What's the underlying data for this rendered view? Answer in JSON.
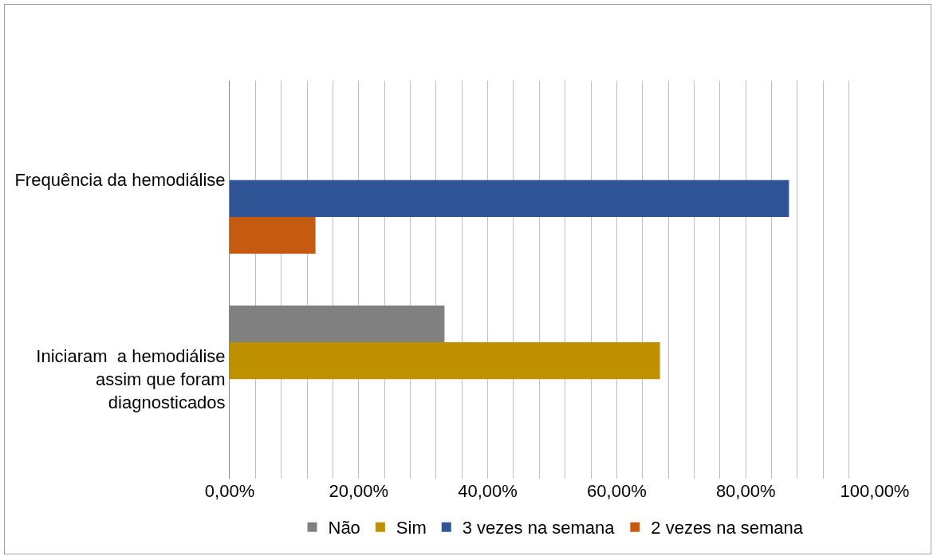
{
  "chart_data": {
    "type": "bar",
    "orientation": "horizontal",
    "categories": [
      "Frequência da hemodiálise",
      "Iniciaram  a hemodiálise assim que foram diagnosticados"
    ],
    "series": [
      {
        "name": "Não",
        "color": "#808080",
        "values": [
          null,
          33.3
        ]
      },
      {
        "name": "Sim",
        "color": "#bf9000",
        "values": [
          null,
          66.7
        ]
      },
      {
        "name": "3 vezes na semana",
        "color": "#2f5597",
        "values": [
          86.7,
          null
        ]
      },
      {
        "name": "2 vezes na semana",
        "color": "#c55a11",
        "values": [
          13.3,
          null
        ]
      }
    ],
    "xlim": [
      0,
      100
    ],
    "xticks": [
      {
        "value": 0,
        "label": "0,00%"
      },
      {
        "value": 4,
        "label": null
      },
      {
        "value": 8,
        "label": null
      },
      {
        "value": 12,
        "label": null
      },
      {
        "value": 16,
        "label": null
      },
      {
        "value": 20,
        "label": "20,00%"
      },
      {
        "value": 24,
        "label": null
      },
      {
        "value": 28,
        "label": null
      },
      {
        "value": 32,
        "label": null
      },
      {
        "value": 36,
        "label": null
      },
      {
        "value": 40,
        "label": "40,00%"
      },
      {
        "value": 44,
        "label": null
      },
      {
        "value": 48,
        "label": null
      },
      {
        "value": 52,
        "label": null
      },
      {
        "value": 56,
        "label": null
      },
      {
        "value": 60,
        "label": "60,00%"
      },
      {
        "value": 64,
        "label": null
      },
      {
        "value": 68,
        "label": null
      },
      {
        "value": 72,
        "label": null
      },
      {
        "value": 76,
        "label": null
      },
      {
        "value": 80,
        "label": "80,00%"
      },
      {
        "value": 84,
        "label": null
      },
      {
        "value": 88,
        "label": null
      },
      {
        "value": 92,
        "label": null
      },
      {
        "value": 96,
        "label": null
      },
      {
        "value": 100,
        "label": "100,00%"
      }
    ],
    "grid": "x",
    "legend": "bottom"
  }
}
